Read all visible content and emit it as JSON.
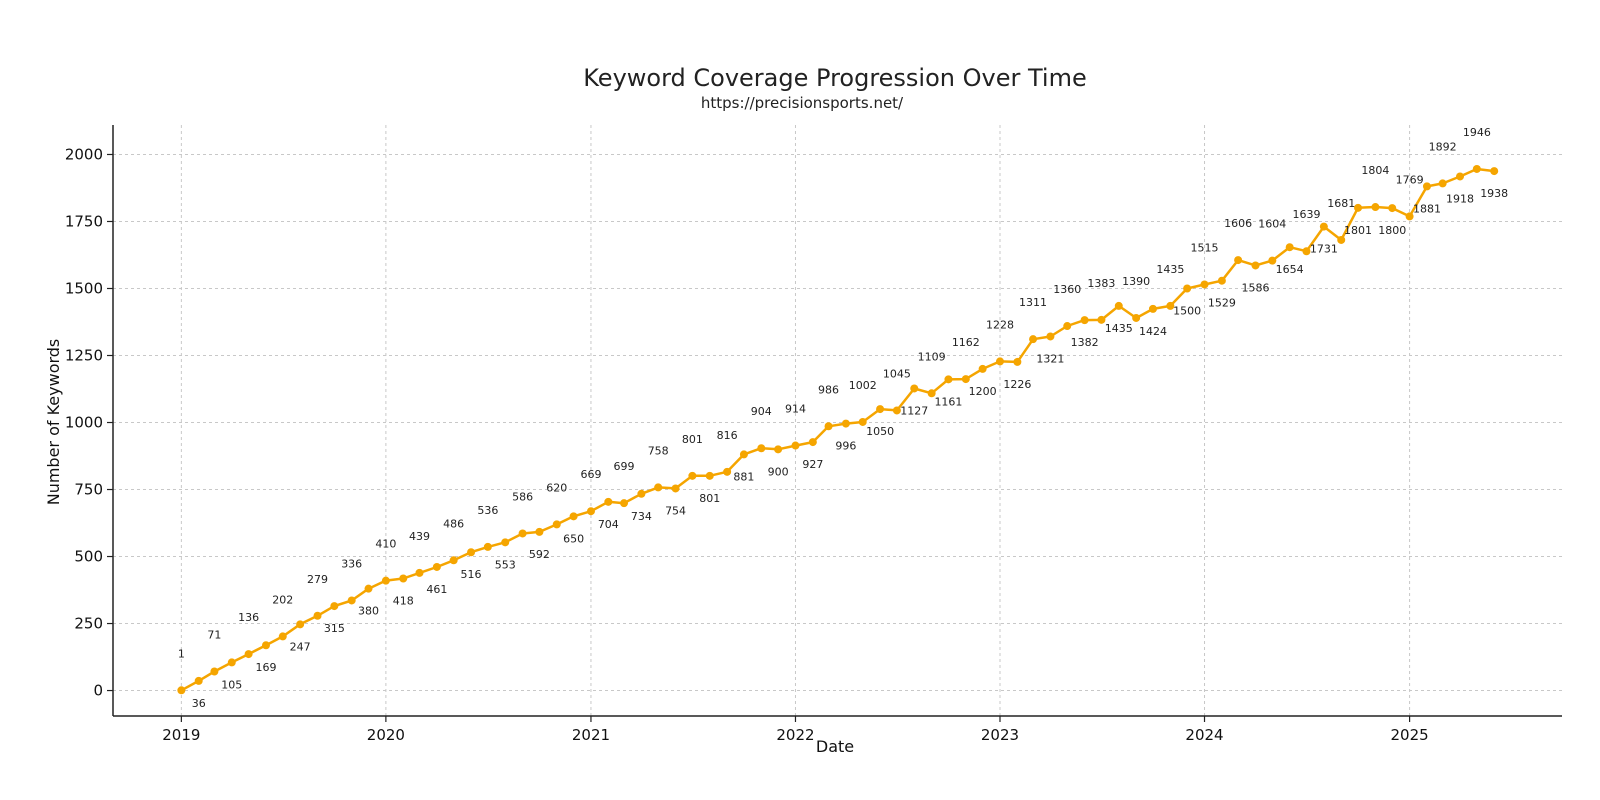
{
  "chart_data": {
    "type": "line",
    "title": "Keyword Coverage Progression Over Time",
    "subtitle": "https://precisionsports.net/",
    "xlabel": "Date",
    "ylabel": "Number of Keywords",
    "xlim": [
      "2018-09-01",
      "2025-09-30"
    ],
    "ylim": [
      -95,
      2110
    ],
    "x_ticks": [
      "2019",
      "2020",
      "2021",
      "2022",
      "2023",
      "2024",
      "2025"
    ],
    "y_ticks": [
      0,
      250,
      500,
      750,
      1000,
      1250,
      1500,
      1750,
      2000
    ],
    "grid": true,
    "color": "#f5a500",
    "series": [
      {
        "x": [
          "2019-01-01",
          "2019-02-01",
          "2019-03-01",
          "2019-04-01",
          "2019-05-01",
          "2019-06-01",
          "2019-07-01",
          "2019-08-01",
          "2019-09-01",
          "2019-10-01",
          "2019-11-01",
          "2019-12-01",
          "2020-01-01",
          "2020-02-01",
          "2020-03-01",
          "2020-04-01",
          "2020-05-01",
          "2020-06-01",
          "2020-07-01",
          "2020-08-01",
          "2020-09-01",
          "2020-10-01",
          "2020-11-01",
          "2020-12-01",
          "2021-01-01",
          "2021-02-01",
          "2021-03-01",
          "2021-04-01",
          "2021-05-01",
          "2021-06-01",
          "2021-07-01",
          "2021-08-01",
          "2021-09-01",
          "2021-10-01",
          "2021-11-01",
          "2021-12-01",
          "2022-01-01",
          "2022-02-01",
          "2022-03-01",
          "2022-04-01",
          "2022-05-01",
          "2022-06-01",
          "2022-07-01",
          "2022-08-01",
          "2022-09-01",
          "2022-10-01",
          "2022-11-01",
          "2022-12-01",
          "2023-01-01",
          "2023-02-01",
          "2023-03-01",
          "2023-04-01",
          "2023-05-01",
          "2023-06-01",
          "2023-07-01",
          "2023-08-01",
          "2023-09-01",
          "2023-10-01",
          "2023-11-01",
          "2023-12-01",
          "2024-01-01",
          "2024-02-01",
          "2024-03-01",
          "2024-04-01",
          "2024-05-01",
          "2024-06-01",
          "2024-07-01",
          "2024-08-01",
          "2024-09-01",
          "2024-10-01",
          "2024-11-01",
          "2024-12-01",
          "2025-01-01",
          "2025-02-01",
          "2025-03-01",
          "2025-04-01",
          "2025-05-01",
          "2025-06-01"
        ],
        "values": [
          1,
          36,
          71,
          105,
          136,
          169,
          202,
          247,
          279,
          315,
          336,
          380,
          410,
          418,
          439,
          461,
          486,
          516,
          536,
          553,
          586,
          592,
          620,
          650,
          669,
          704,
          699,
          734,
          758,
          754,
          801,
          801,
          816,
          881,
          904,
          900,
          914,
          927,
          986,
          996,
          1002,
          1050,
          1045,
          1127,
          1109,
          1161,
          1162,
          1200,
          1228,
          1226,
          1311,
          1321,
          1360,
          1382,
          1383,
          1435,
          1390,
          1424,
          1435,
          1500,
          1515,
          1529,
          1606,
          1586,
          1604,
          1654,
          1639,
          1731,
          1681,
          1801,
          1804,
          1800,
          1769,
          1881,
          1892,
          1918,
          1946,
          1938
        ],
        "labels": [
          "1",
          "36",
          "71",
          "105",
          "136",
          "169",
          "202",
          "247",
          "279",
          "315",
          "336",
          "380",
          "410",
          "418",
          "439",
          "461",
          "486",
          "516",
          "536",
          "553",
          "586",
          "592",
          "620",
          "650",
          "669",
          "704",
          "699",
          "734",
          "758",
          "754",
          "801",
          "801",
          "816",
          "881",
          "904",
          "900",
          "914",
          "927",
          "986",
          "996",
          "1002",
          "1050",
          "1045",
          "1127",
          "1109",
          "1161",
          "1162",
          "1200",
          "1228",
          "1226",
          "1311",
          "1321",
          "1360",
          "1382",
          "1383",
          "1435",
          "1390",
          "1424",
          "1435",
          "1500",
          "1515",
          "1529",
          "1606",
          "1586",
          "1604",
          "1654",
          "1639",
          "1731",
          "1681",
          "1801",
          "1804",
          "1800",
          "1769",
          "1881",
          "1892",
          "1918",
          "1946",
          "1938"
        ]
      }
    ]
  }
}
